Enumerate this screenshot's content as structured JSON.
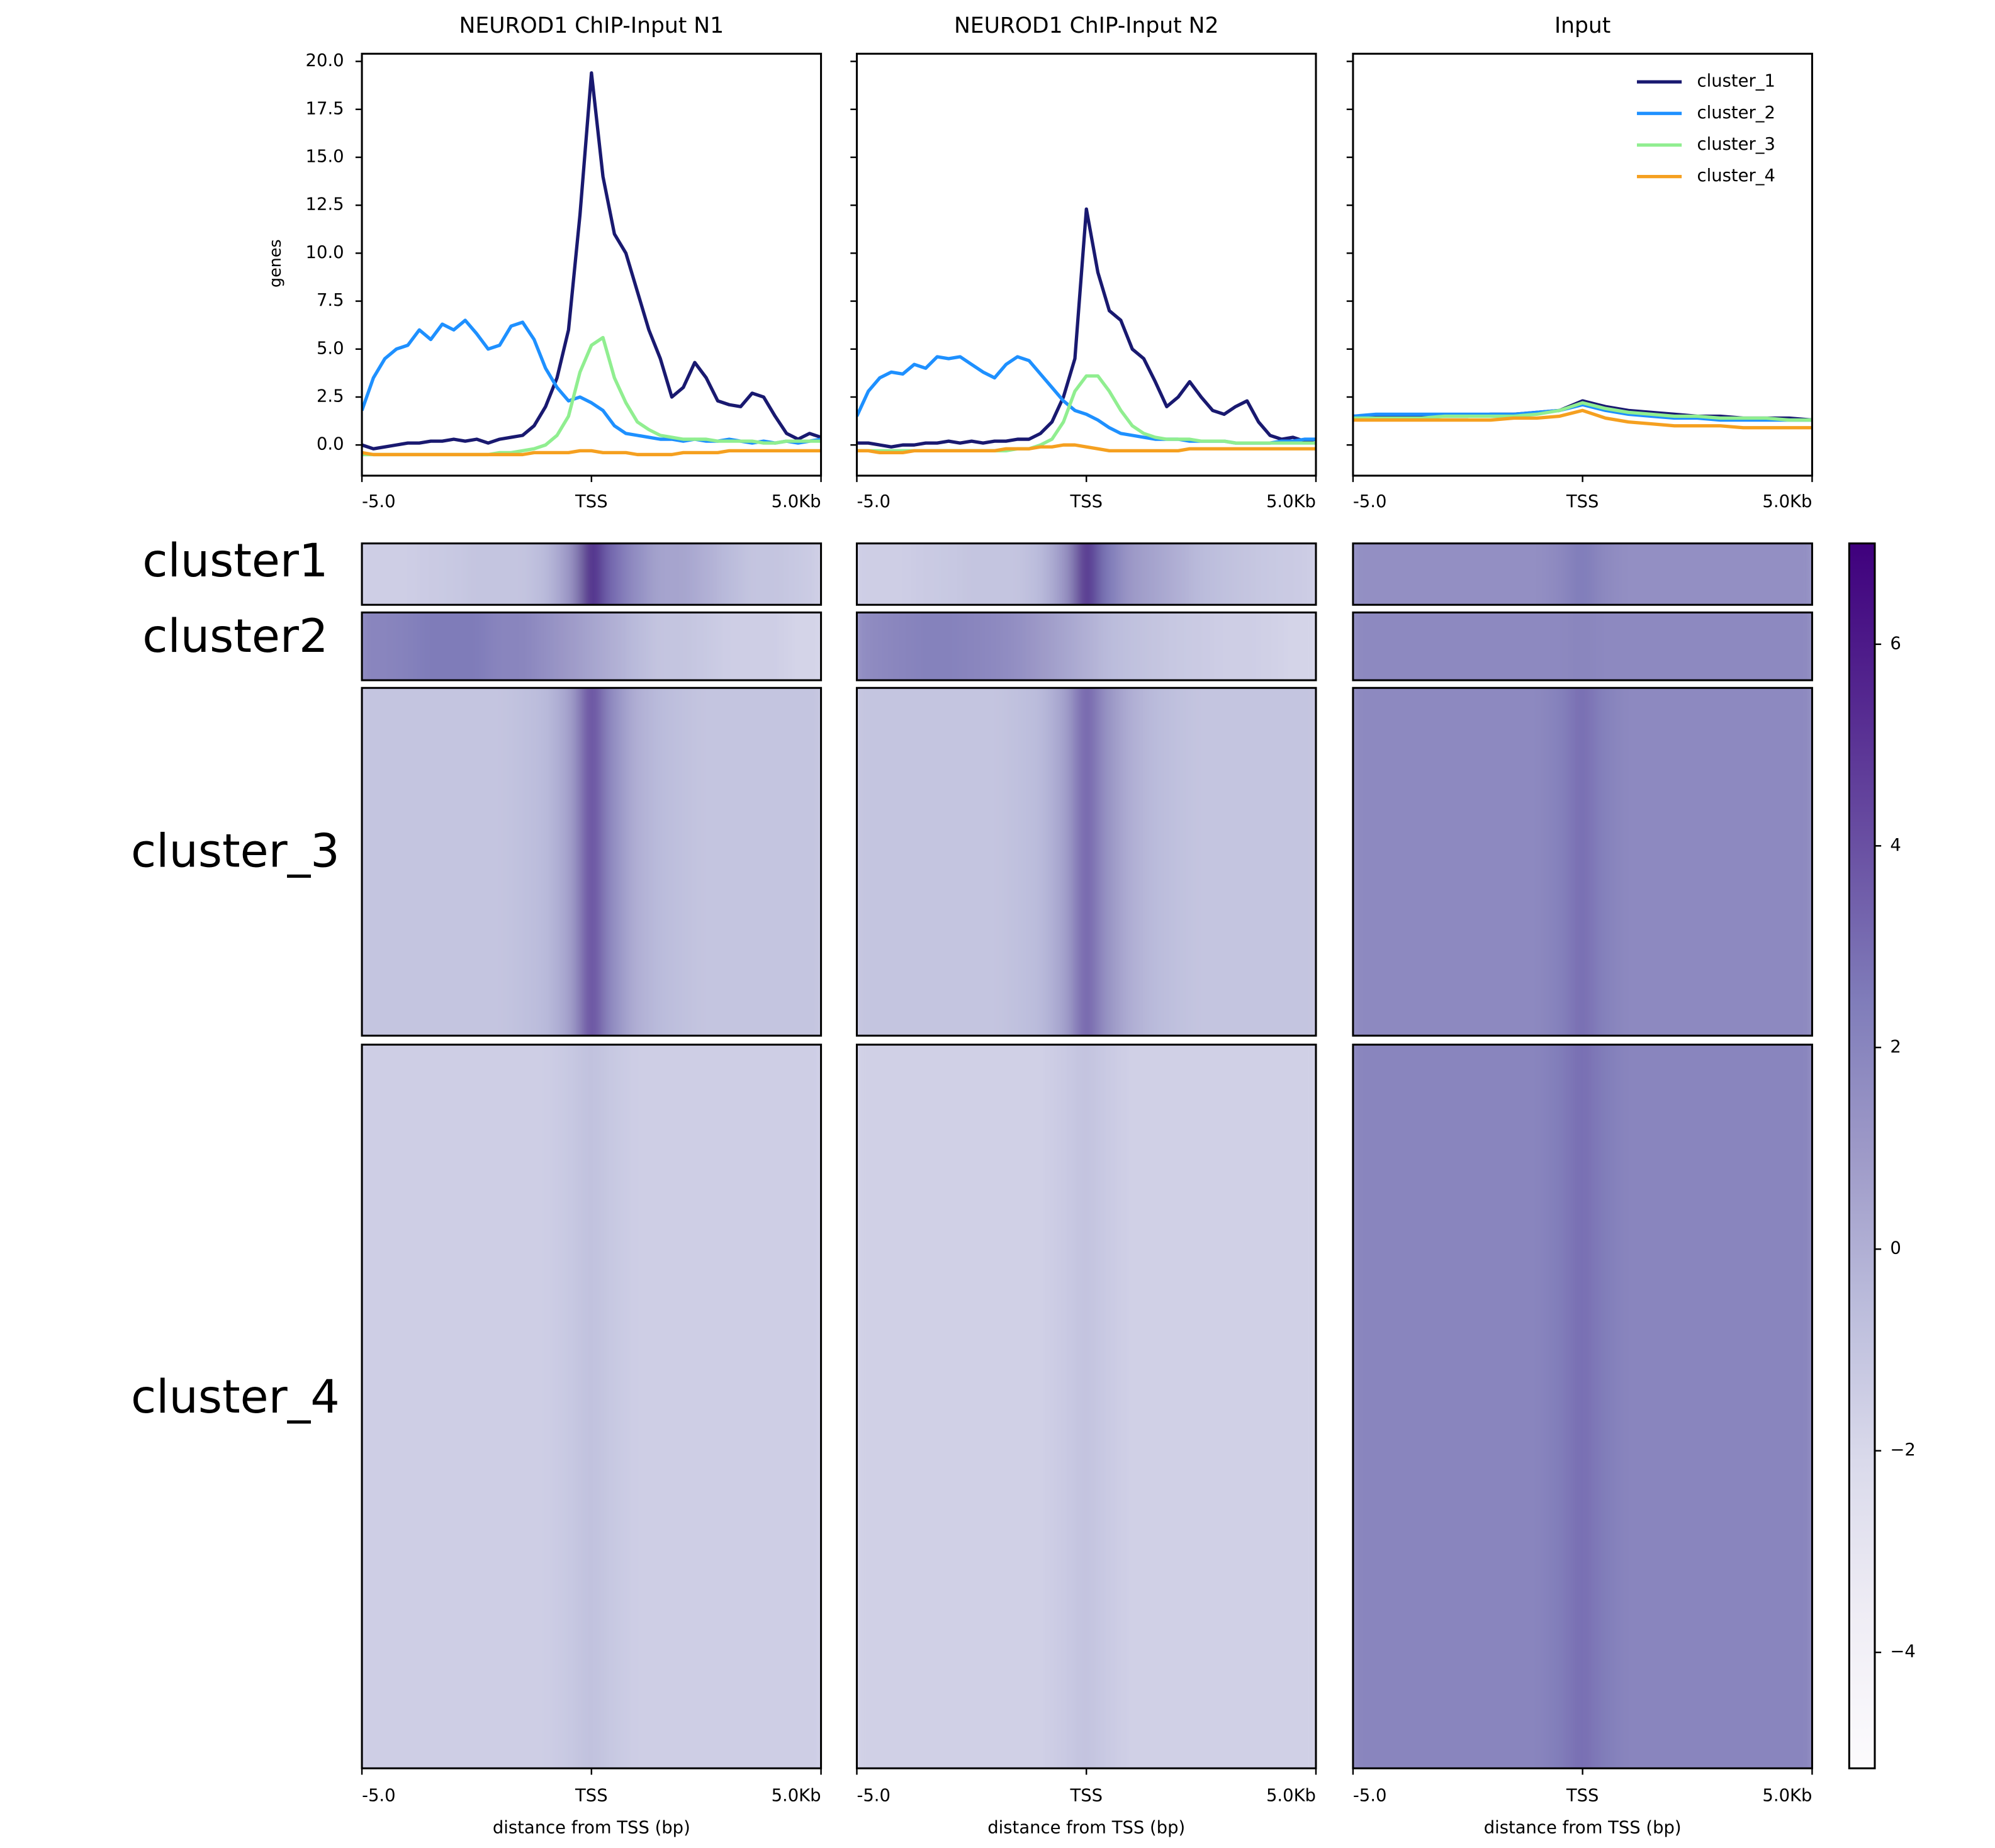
{
  "chart_data": [
    {
      "type": "line",
      "title": "NEUROD1 ChIP-Input N1",
      "ylabel": "genes",
      "xlim": [
        -5,
        5
      ],
      "xticks": [
        {
          "value": -5,
          "label": "-5.0"
        },
        {
          "value": 0,
          "label": "TSS"
        },
        {
          "value": 5,
          "label": "5.0Kb"
        }
      ],
      "ylim": [
        -1.6,
        20.4
      ],
      "yticks": [
        {
          "value": 0,
          "label": "0.0"
        },
        {
          "value": 2.5,
          "label": "2.5"
        },
        {
          "value": 5,
          "label": "5.0"
        },
        {
          "value": 7.5,
          "label": "7.5"
        },
        {
          "value": 10,
          "label": "10.0"
        },
        {
          "value": 12.5,
          "label": "12.5"
        },
        {
          "value": 15,
          "label": "15.0"
        },
        {
          "value": 17.5,
          "label": "17.5"
        },
        {
          "value": 20,
          "label": "20.0"
        }
      ],
      "x": [
        -5,
        -4.75,
        -4.5,
        -4.25,
        -4,
        -3.75,
        -3.5,
        -3.25,
        -3,
        -2.75,
        -2.5,
        -2.25,
        -2,
        -1.75,
        -1.5,
        -1.25,
        -1,
        -0.75,
        -0.5,
        -0.25,
        0,
        0.25,
        0.5,
        0.75,
        1,
        1.25,
        1.5,
        1.75,
        2,
        2.25,
        2.5,
        2.75,
        3,
        3.25,
        3.5,
        3.75,
        4,
        4.25,
        4.5,
        4.75,
        5
      ],
      "series": [
        {
          "color": "#191970",
          "values": [
            0.0,
            -0.2,
            -0.1,
            0.0,
            0.1,
            0.1,
            0.2,
            0.2,
            0.3,
            0.2,
            0.3,
            0.1,
            0.3,
            0.4,
            0.5,
            1.0,
            2.0,
            3.5,
            6.0,
            12.0,
            19.4,
            14.0,
            11.0,
            10.0,
            8.0,
            6.0,
            4.5,
            2.5,
            3.0,
            4.3,
            3.5,
            2.3,
            2.1,
            2.0,
            2.7,
            2.5,
            1.5,
            0.6,
            0.3,
            0.6,
            0.4
          ]
        },
        {
          "color": "#1e90ff",
          "values": [
            1.8,
            3.5,
            4.5,
            5.0,
            5.2,
            6.0,
            5.5,
            6.3,
            6.0,
            6.5,
            5.8,
            5.0,
            5.2,
            6.2,
            6.4,
            5.5,
            4.0,
            3.0,
            2.3,
            2.5,
            2.2,
            1.8,
            1.0,
            0.6,
            0.5,
            0.4,
            0.3,
            0.3,
            0.2,
            0.3,
            0.2,
            0.2,
            0.3,
            0.2,
            0.1,
            0.2,
            0.1,
            0.2,
            0.1,
            0.2,
            0.3
          ]
        },
        {
          "color": "#90ee90",
          "values": [
            -0.5,
            -0.5,
            -0.5,
            -0.5,
            -0.5,
            -0.5,
            -0.5,
            -0.5,
            -0.5,
            -0.5,
            -0.5,
            -0.5,
            -0.4,
            -0.4,
            -0.3,
            -0.2,
            0.0,
            0.5,
            1.5,
            3.8,
            5.2,
            5.6,
            3.5,
            2.2,
            1.2,
            0.8,
            0.5,
            0.4,
            0.3,
            0.3,
            0.3,
            0.2,
            0.2,
            0.2,
            0.2,
            0.1,
            0.1,
            0.2,
            0.2,
            0.2,
            0.2
          ]
        },
        {
          "color": "#f5a020",
          "values": [
            -0.4,
            -0.5,
            -0.5,
            -0.5,
            -0.5,
            -0.5,
            -0.5,
            -0.5,
            -0.5,
            -0.5,
            -0.5,
            -0.5,
            -0.5,
            -0.5,
            -0.5,
            -0.4,
            -0.4,
            -0.4,
            -0.4,
            -0.3,
            -0.3,
            -0.4,
            -0.4,
            -0.4,
            -0.5,
            -0.5,
            -0.5,
            -0.5,
            -0.4,
            -0.4,
            -0.4,
            -0.4,
            -0.3,
            -0.3,
            -0.3,
            -0.3,
            -0.3,
            -0.3,
            -0.3,
            -0.3,
            -0.3
          ]
        }
      ]
    },
    {
      "type": "line",
      "title": "NEUROD1 ChIP-Input N2",
      "xlim": [
        -5,
        5
      ],
      "xticks": [
        {
          "value": -5,
          "label": "-5.0"
        },
        {
          "value": 0,
          "label": "TSS"
        },
        {
          "value": 5,
          "label": "5.0Kb"
        }
      ],
      "x": [
        -5,
        -4.75,
        -4.5,
        -4.25,
        -4,
        -3.75,
        -3.5,
        -3.25,
        -3,
        -2.75,
        -2.5,
        -2.25,
        -2,
        -1.75,
        -1.5,
        -1.25,
        -1,
        -0.75,
        -0.5,
        -0.25,
        0,
        0.25,
        0.5,
        0.75,
        1,
        1.25,
        1.5,
        1.75,
        2,
        2.25,
        2.5,
        2.75,
        3,
        3.25,
        3.5,
        3.75,
        4,
        4.25,
        4.5,
        4.75,
        5
      ],
      "series": [
        {
          "color": "#191970",
          "values": [
            0.1,
            0.1,
            0.0,
            -0.1,
            0.0,
            0.0,
            0.1,
            0.1,
            0.2,
            0.1,
            0.2,
            0.1,
            0.2,
            0.2,
            0.3,
            0.3,
            0.6,
            1.2,
            2.5,
            4.5,
            12.3,
            9.0,
            7.0,
            6.5,
            5.0,
            4.5,
            3.3,
            2.0,
            2.5,
            3.3,
            2.5,
            1.8,
            1.6,
            2.0,
            2.3,
            1.2,
            0.5,
            0.3,
            0.4,
            0.2,
            0.3
          ]
        },
        {
          "color": "#1e90ff",
          "values": [
            1.5,
            2.8,
            3.5,
            3.8,
            3.7,
            4.2,
            4.0,
            4.6,
            4.5,
            4.6,
            4.2,
            3.8,
            3.5,
            4.2,
            4.6,
            4.4,
            3.7,
            3.0,
            2.3,
            1.8,
            1.6,
            1.3,
            0.9,
            0.6,
            0.5,
            0.4,
            0.3,
            0.3,
            0.3,
            0.2,
            0.2,
            0.2,
            0.2,
            0.1,
            0.1,
            0.1,
            0.1,
            0.2,
            0.2,
            0.3,
            0.3
          ]
        },
        {
          "color": "#90ee90",
          "values": [
            -0.3,
            -0.3,
            -0.3,
            -0.3,
            -0.3,
            -0.3,
            -0.3,
            -0.3,
            -0.3,
            -0.3,
            -0.3,
            -0.3,
            -0.3,
            -0.3,
            -0.2,
            -0.2,
            0.0,
            0.3,
            1.2,
            2.8,
            3.6,
            3.6,
            2.8,
            1.8,
            1.0,
            0.6,
            0.4,
            0.3,
            0.3,
            0.3,
            0.2,
            0.2,
            0.2,
            0.1,
            0.1,
            0.1,
            0.1,
            0.1,
            0.1,
            0.1,
            0.1
          ]
        },
        {
          "color": "#f5a020",
          "values": [
            -0.3,
            -0.3,
            -0.4,
            -0.4,
            -0.4,
            -0.3,
            -0.3,
            -0.3,
            -0.3,
            -0.3,
            -0.3,
            -0.3,
            -0.3,
            -0.2,
            -0.2,
            -0.2,
            -0.1,
            -0.1,
            0.0,
            0.0,
            -0.1,
            -0.2,
            -0.3,
            -0.3,
            -0.3,
            -0.3,
            -0.3,
            -0.3,
            -0.3,
            -0.2,
            -0.2,
            -0.2,
            -0.2,
            -0.2,
            -0.2,
            -0.2,
            -0.2,
            -0.2,
            -0.2,
            -0.2,
            -0.2
          ]
        }
      ]
    },
    {
      "type": "line",
      "title": "Input",
      "legend": "upper right",
      "xlim": [
        -5,
        5
      ],
      "xticks": [
        {
          "value": -5,
          "label": "-5.0"
        },
        {
          "value": 0,
          "label": "TSS"
        },
        {
          "value": 5,
          "label": "5.0Kb"
        }
      ],
      "x": [
        -5,
        -4.5,
        -4,
        -3.5,
        -3,
        -2.5,
        -2,
        -1.5,
        -1,
        -0.5,
        0,
        0.5,
        1,
        1.5,
        2,
        2.5,
        3,
        3.5,
        4,
        4.5,
        5
      ],
      "series": [
        {
          "name": "cluster_1",
          "color": "#191970",
          "values": [
            1.5,
            1.5,
            1.5,
            1.5,
            1.5,
            1.5,
            1.6,
            1.6,
            1.7,
            1.8,
            2.3,
            2.0,
            1.8,
            1.7,
            1.6,
            1.5,
            1.5,
            1.4,
            1.4,
            1.4,
            1.3
          ]
        },
        {
          "name": "cluster_2",
          "color": "#1e90ff",
          "values": [
            1.5,
            1.6,
            1.6,
            1.6,
            1.6,
            1.6,
            1.6,
            1.6,
            1.7,
            1.8,
            2.1,
            1.8,
            1.6,
            1.5,
            1.4,
            1.4,
            1.3,
            1.3,
            1.3,
            1.3,
            1.3
          ]
        },
        {
          "name": "cluster_3",
          "color": "#90ee90",
          "values": [
            1.4,
            1.4,
            1.4,
            1.4,
            1.5,
            1.5,
            1.5,
            1.5,
            1.6,
            1.8,
            2.2,
            1.9,
            1.7,
            1.6,
            1.5,
            1.5,
            1.4,
            1.4,
            1.4,
            1.3,
            1.3
          ]
        },
        {
          "name": "cluster_4",
          "color": "#f5a020",
          "values": [
            1.3,
            1.3,
            1.3,
            1.3,
            1.3,
            1.3,
            1.3,
            1.4,
            1.4,
            1.5,
            1.8,
            1.4,
            1.2,
            1.1,
            1.0,
            1.0,
            1.0,
            0.9,
            0.9,
            0.9,
            0.9
          ]
        }
      ]
    },
    {
      "type": "heatmap",
      "xlabel": "distance from TSS (bp)",
      "row_labels": [
        "cluster1",
        "cluster2",
        "cluster_3",
        "cluster_4"
      ],
      "xlim": [
        -5,
        5
      ],
      "xticks": [
        {
          "value": -5,
          "label": "-5.0"
        },
        {
          "value": 0,
          "label": "TSS"
        },
        {
          "value": 5,
          "label": "5.0Kb"
        }
      ],
      "x": [
        -5,
        -4.5,
        -4,
        -3.5,
        -3,
        -2.5,
        -2,
        -1.5,
        -1,
        -0.5,
        0,
        0.5,
        1,
        1.5,
        2,
        2.5,
        3,
        3.5,
        4,
        4.5,
        5
      ],
      "clim": [
        -5.15,
        7.0
      ],
      "cticks": [
        {
          "value": -4,
          "label": "−4"
        },
        {
          "value": -2,
          "label": "−2"
        },
        0,
        2,
        4,
        6
      ],
      "colormap": [
        "#fcfbfd",
        "#efedf5",
        "#dadaeb",
        "#bcbddc",
        "#9e9ac8",
        "#807dba",
        "#6a51a3",
        "#54278f",
        "#3f007d"
      ],
      "panels": [
        [
          [
            -1.5,
            -1.5,
            -1.5,
            -1.3,
            -1.2,
            -1.0,
            -1.0,
            -1.0,
            -0.5,
            1.0,
            6.5,
            3.0,
            1.5,
            0.5,
            0.5,
            0.0,
            -0.5,
            -1.0,
            -1.0,
            -1.2,
            -1.5
          ],
          [
            2.0,
            2.0,
            2.2,
            2.5,
            2.5,
            2.5,
            2.0,
            2.0,
            1.5,
            1.0,
            0.5,
            0.0,
            -0.5,
            -1.0,
            -1.0,
            -1.2,
            -1.5,
            -1.5,
            -1.5,
            -1.8,
            -1.8
          ],
          [
            -1.0,
            -1.0,
            -1.0,
            -1.0,
            -1.0,
            -1.0,
            -1.0,
            -0.8,
            -0.5,
            0.5,
            4.5,
            1.5,
            0.0,
            -0.5,
            -0.8,
            -1.0,
            -1.0,
            -1.0,
            -1.0,
            -1.0,
            -1.0
          ],
          [
            -1.5,
            -1.5,
            -1.5,
            -1.5,
            -1.5,
            -1.5,
            -1.5,
            -1.5,
            -1.5,
            -1.2,
            -0.8,
            -1.2,
            -1.5,
            -1.5,
            -1.5,
            -1.5,
            -1.5,
            -1.5,
            -1.5,
            -1.5,
            -1.5
          ]
        ],
        [
          [
            -1.5,
            -1.5,
            -1.5,
            -1.3,
            -1.2,
            -1.0,
            -1.0,
            -1.0,
            -0.5,
            1.0,
            6.0,
            2.5,
            1.0,
            0.5,
            0.0,
            -0.5,
            -0.8,
            -1.0,
            -1.2,
            -1.3,
            -1.5
          ],
          [
            1.5,
            1.8,
            2.0,
            2.2,
            2.2,
            2.0,
            1.8,
            1.5,
            1.0,
            0.5,
            0.0,
            -0.5,
            -0.8,
            -1.0,
            -1.2,
            -1.3,
            -1.5,
            -1.5,
            -1.6,
            -1.8,
            -1.8
          ],
          [
            -1.0,
            -1.0,
            -1.0,
            -1.0,
            -1.0,
            -1.0,
            -1.0,
            -0.8,
            -0.5,
            0.5,
            3.5,
            1.2,
            0.0,
            -0.5,
            -0.8,
            -1.0,
            -1.0,
            -1.0,
            -1.0,
            -1.0,
            -1.0
          ],
          [
            -1.6,
            -1.6,
            -1.6,
            -1.6,
            -1.6,
            -1.6,
            -1.6,
            -1.6,
            -1.6,
            -1.3,
            -0.9,
            -1.3,
            -1.6,
            -1.6,
            -1.6,
            -1.6,
            -1.6,
            -1.6,
            -1.6,
            -1.6,
            -1.6
          ]
        ],
        [
          [
            1.5,
            1.5,
            1.5,
            1.5,
            1.5,
            1.5,
            1.5,
            1.5,
            1.5,
            1.8,
            2.5,
            1.8,
            1.5,
            1.5,
            1.5,
            1.5,
            1.5,
            1.5,
            1.5,
            1.5,
            1.5
          ],
          [
            1.8,
            1.8,
            1.8,
            1.8,
            1.8,
            1.8,
            1.8,
            1.8,
            1.8,
            1.8,
            2.0,
            1.8,
            1.8,
            1.8,
            1.8,
            1.8,
            1.8,
            1.8,
            1.8,
            1.8,
            1.8
          ],
          [
            1.8,
            1.8,
            1.8,
            1.8,
            1.8,
            1.8,
            1.8,
            1.8,
            1.8,
            2.2,
            3.0,
            2.2,
            1.8,
            1.8,
            1.8,
            1.8,
            1.8,
            1.8,
            1.8,
            1.8,
            1.8
          ],
          [
            2.0,
            2.0,
            2.0,
            2.0,
            2.0,
            2.0,
            2.0,
            2.0,
            2.0,
            2.4,
            3.0,
            2.4,
            2.0,
            2.0,
            2.0,
            2.0,
            2.0,
            2.0,
            2.0,
            2.0,
            2.0
          ]
        ]
      ]
    }
  ]
}
